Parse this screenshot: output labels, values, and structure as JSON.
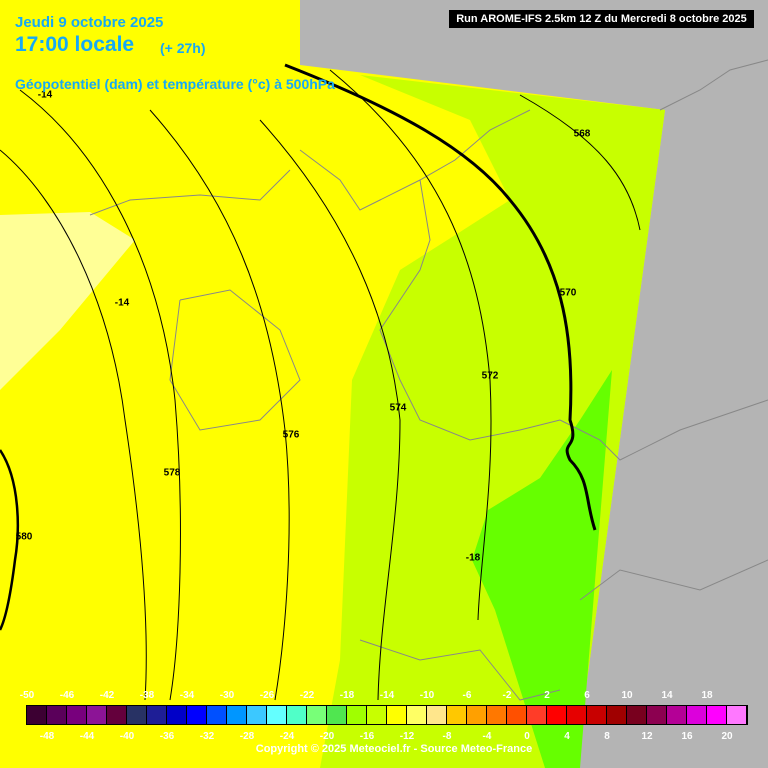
{
  "header": {
    "date": "Jeudi 9 octobre 2025",
    "time": "17:00 locale",
    "lead": "(+ 27h)",
    "subtitle": "Géopotentiel (dam) et température (°c) à 500hPa",
    "run": "Run AROME-IFS 2.5km 12 Z du Mercredi 8 octobre 2025"
  },
  "contour_labels": [
    -14,
    -14,
    568,
    570,
    572,
    574,
    576,
    578,
    580,
    -18
  ],
  "legend": {
    "top_labels": [
      -50,
      -46,
      -42,
      -38,
      -34,
      -30,
      -26,
      -22,
      -18,
      -14,
      -10,
      -6,
      -2,
      2,
      6,
      10,
      14,
      18
    ],
    "bottom_labels": [
      -48,
      -44,
      -40,
      -36,
      -32,
      -28,
      -24,
      -20,
      -16,
      -12,
      -8,
      -4,
      0,
      4,
      8,
      12,
      16,
      20
    ],
    "colors": [
      "#3c0032",
      "#5a005a",
      "#78007d",
      "#8c1496",
      "#64003c",
      "#283264",
      "#1e1e96",
      "#0000c8",
      "#0000ff",
      "#0050ff",
      "#0096ff",
      "#3cc8ff",
      "#64ffff",
      "#50ffc8",
      "#78ff78",
      "#50e650",
      "#a0ff00",
      "#c8ff00",
      "#ffff00",
      "#ffff64",
      "#ffe68c",
      "#ffc800",
      "#ffa000",
      "#ff7800",
      "#ff5000",
      "#ff3c28",
      "#ff0000",
      "#e60000",
      "#c80000",
      "#a00000",
      "#78001e",
      "#8c0050",
      "#b40096",
      "#dc00dc",
      "#ff00ff",
      "#ff78ff"
    ]
  },
  "footer": {
    "copyright": "Copyright © 2025 Meteociel.fr - Source Meteo-France"
  }
}
